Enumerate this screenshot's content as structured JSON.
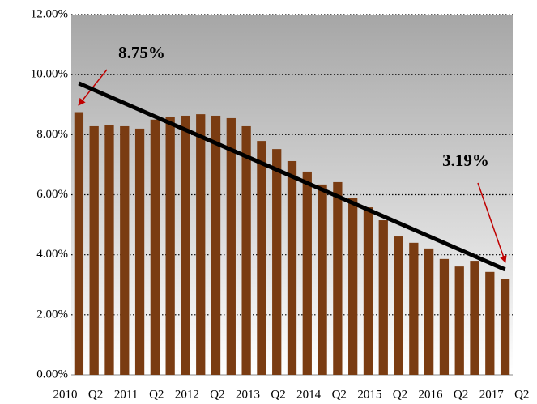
{
  "chart_data": {
    "type": "bar",
    "values": [
      8.75,
      8.28,
      8.31,
      8.28,
      8.2,
      8.5,
      8.58,
      8.63,
      8.68,
      8.63,
      8.55,
      8.28,
      7.79,
      7.52,
      7.12,
      6.77,
      6.34,
      6.42,
      5.88,
      5.58,
      5.15,
      4.61,
      4.4,
      4.21,
      3.86,
      3.61,
      3.8,
      3.43,
      3.19
    ],
    "value_labels": [
      "8.75%",
      null,
      null,
      null,
      null,
      null,
      null,
      null,
      null,
      null,
      null,
      null,
      null,
      null,
      null,
      null,
      null,
      null,
      null,
      null,
      null,
      null,
      null,
      null,
      null,
      null,
      null,
      null,
      "3.19%"
    ],
    "color": "#7a3c12",
    "x_labels": [
      "2010",
      "Q2",
      "2011",
      "Q2",
      "2012",
      "Q2",
      "2013",
      "Q2",
      "2014",
      "Q2",
      "2015",
      "Q2",
      "2016",
      "Q2",
      "2017",
      "Q2"
    ],
    "trendline": {
      "color": "#000000",
      "values": [
        9.71,
        3.51
      ]
    },
    "ylim": [
      0,
      12
    ],
    "yticks": [
      {
        "value": 0,
        "label": "0.00%"
      },
      {
        "value": 2,
        "label": "2.00%"
      },
      {
        "value": 4,
        "label": "4.00%"
      },
      {
        "value": 6,
        "label": "6.00%"
      },
      {
        "value": 8,
        "label": "8.00%"
      },
      {
        "value": 10,
        "label": "10.00%"
      },
      {
        "value": 12,
        "label": "12.00%"
      }
    ],
    "grid": true
  }
}
